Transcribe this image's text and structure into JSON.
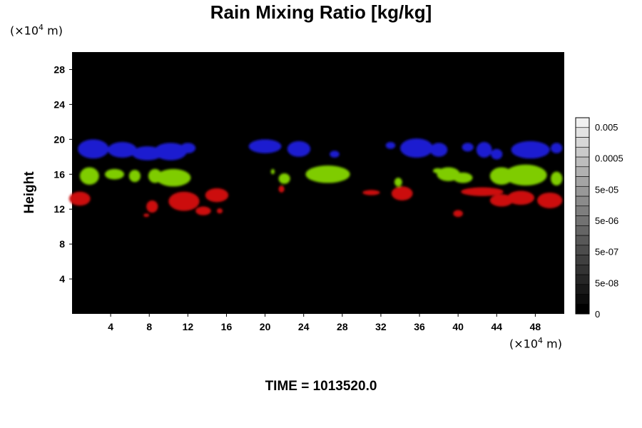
{
  "chart_data": {
    "type": "heatmap",
    "title": "Rain Mixing Ratio [kg/kg]",
    "ylabel": "Height",
    "x_unit": {
      "prefix": "(×10",
      "exp": "4",
      "suffix": " m)"
    },
    "y_unit": {
      "prefix": "(×10",
      "exp": "4",
      "suffix": " m)"
    },
    "xlim": [
      0,
      51
    ],
    "ylim": [
      0,
      30
    ],
    "x_ticks": [
      "4",
      "8",
      "12",
      "16",
      "20",
      "24",
      "28",
      "32",
      "36",
      "40",
      "44",
      "48"
    ],
    "y_ticks": [
      "4",
      "8",
      "12",
      "16",
      "20",
      "24",
      "28"
    ],
    "colorbar": {
      "labels": [
        "0",
        "5e-08",
        "5e-07",
        "5e-06",
        "5e-05",
        "0.0005",
        "0.005"
      ],
      "levels": 20,
      "colors": [
        "#000000",
        "#f0f0f0"
      ]
    },
    "background_color": "#000000",
    "bands": [
      {
        "name": "upper",
        "color": "#1a1ad0",
        "blobs": [
          {
            "x": 2.2,
            "y": 18.9,
            "rx": 1.6,
            "ry": 1.1
          },
          {
            "x": 5.2,
            "y": 18.8,
            "rx": 1.5,
            "ry": 0.9
          },
          {
            "x": 7.8,
            "y": 18.4,
            "rx": 1.6,
            "ry": 0.8
          },
          {
            "x": 10.2,
            "y": 18.6,
            "rx": 1.7,
            "ry": 1.0
          },
          {
            "x": 12.0,
            "y": 19.0,
            "rx": 0.8,
            "ry": 0.6
          },
          {
            "x": 20.0,
            "y": 19.2,
            "rx": 1.7,
            "ry": 0.8
          },
          {
            "x": 23.5,
            "y": 18.9,
            "rx": 1.2,
            "ry": 0.9
          },
          {
            "x": 27.2,
            "y": 18.3,
            "rx": 0.5,
            "ry": 0.4
          },
          {
            "x": 33.0,
            "y": 19.3,
            "rx": 0.5,
            "ry": 0.4
          },
          {
            "x": 35.7,
            "y": 19.0,
            "rx": 1.7,
            "ry": 1.1
          },
          {
            "x": 38.0,
            "y": 18.8,
            "rx": 0.9,
            "ry": 0.8
          },
          {
            "x": 41.0,
            "y": 19.1,
            "rx": 0.6,
            "ry": 0.5
          },
          {
            "x": 42.7,
            "y": 18.8,
            "rx": 0.8,
            "ry": 0.9
          },
          {
            "x": 44.0,
            "y": 18.3,
            "rx": 0.6,
            "ry": 0.6
          },
          {
            "x": 47.5,
            "y": 18.8,
            "rx": 2.0,
            "ry": 1.0
          },
          {
            "x": 50.2,
            "y": 19.0,
            "rx": 0.6,
            "ry": 0.6
          }
        ]
      },
      {
        "name": "middle",
        "color": "#7fcc00",
        "blobs": [
          {
            "x": 1.8,
            "y": 15.8,
            "rx": 1.0,
            "ry": 1.0
          },
          {
            "x": 4.4,
            "y": 16.0,
            "rx": 1.0,
            "ry": 0.6
          },
          {
            "x": 6.5,
            "y": 15.8,
            "rx": 0.6,
            "ry": 0.7
          },
          {
            "x": 8.6,
            "y": 15.8,
            "rx": 0.7,
            "ry": 0.8
          },
          {
            "x": 10.5,
            "y": 15.6,
            "rx": 1.8,
            "ry": 1.0
          },
          {
            "x": 20.8,
            "y": 16.3,
            "rx": 0.2,
            "ry": 0.3
          },
          {
            "x": 22.0,
            "y": 15.5,
            "rx": 0.6,
            "ry": 0.6
          },
          {
            "x": 26.5,
            "y": 16.0,
            "rx": 2.3,
            "ry": 1.0
          },
          {
            "x": 33.8,
            "y": 15.1,
            "rx": 0.4,
            "ry": 0.5
          },
          {
            "x": 37.9,
            "y": 16.4,
            "rx": 0.5,
            "ry": 0.3
          },
          {
            "x": 39.0,
            "y": 16.0,
            "rx": 1.2,
            "ry": 0.8
          },
          {
            "x": 40.5,
            "y": 15.6,
            "rx": 1.0,
            "ry": 0.6
          },
          {
            "x": 44.5,
            "y": 15.8,
            "rx": 1.2,
            "ry": 1.0
          },
          {
            "x": 47.0,
            "y": 15.9,
            "rx": 2.2,
            "ry": 1.2
          },
          {
            "x": 50.2,
            "y": 15.5,
            "rx": 0.6,
            "ry": 0.8
          }
        ]
      },
      {
        "name": "lower",
        "color": "#cc1010",
        "blobs": [
          {
            "x": 0.8,
            "y": 13.2,
            "rx": 1.1,
            "ry": 0.8
          },
          {
            "x": 8.3,
            "y": 12.3,
            "rx": 0.6,
            "ry": 0.7
          },
          {
            "x": 11.6,
            "y": 12.9,
            "rx": 1.6,
            "ry": 1.1
          },
          {
            "x": 13.6,
            "y": 11.8,
            "rx": 0.8,
            "ry": 0.5
          },
          {
            "x": 15.0,
            "y": 13.6,
            "rx": 1.2,
            "ry": 0.8
          },
          {
            "x": 15.3,
            "y": 11.8,
            "rx": 0.3,
            "ry": 0.3
          },
          {
            "x": 7.7,
            "y": 11.3,
            "rx": 0.3,
            "ry": 0.2
          },
          {
            "x": 21.7,
            "y": 14.3,
            "rx": 0.3,
            "ry": 0.4
          },
          {
            "x": 31.0,
            "y": 13.9,
            "rx": 0.9,
            "ry": 0.3
          },
          {
            "x": 34.2,
            "y": 13.8,
            "rx": 1.1,
            "ry": 0.8
          },
          {
            "x": 40.0,
            "y": 11.5,
            "rx": 0.5,
            "ry": 0.4
          },
          {
            "x": 42.5,
            "y": 14.0,
            "rx": 2.2,
            "ry": 0.5
          },
          {
            "x": 44.5,
            "y": 13.0,
            "rx": 1.2,
            "ry": 0.7
          },
          {
            "x": 46.5,
            "y": 13.3,
            "rx": 1.4,
            "ry": 0.8
          },
          {
            "x": 49.5,
            "y": 13.0,
            "rx": 1.3,
            "ry": 0.9
          }
        ]
      }
    ]
  },
  "footer": {
    "time_label": "TIME = 1013520.0"
  }
}
